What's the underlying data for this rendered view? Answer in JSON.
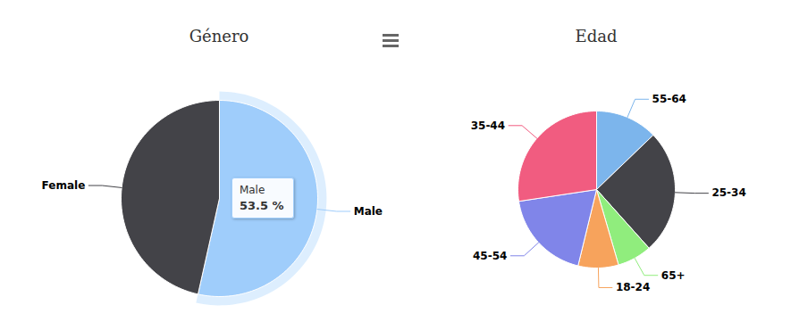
{
  "chart_data": [
    {
      "type": "pie",
      "title": "Género",
      "categories": [
        "Male",
        "Female"
      ],
      "values": [
        53.5,
        46.5
      ],
      "colors": [
        "#9fcdfb",
        "#434348"
      ],
      "tooltip": {
        "category": "Male",
        "value_label": "53.5 %"
      }
    },
    {
      "type": "pie",
      "title": "Edad",
      "categories": [
        "55-64",
        "25-34",
        "65+",
        "18-24",
        "45-54",
        "35-44"
      ],
      "values": [
        12.8,
        25.6,
        7.1,
        8.3,
        18.8,
        27.4
      ],
      "colors": [
        "#7cb5ec",
        "#434348",
        "#90ed7d",
        "#f7a35c",
        "#8085e9",
        "#f15c80"
      ]
    }
  ]
}
